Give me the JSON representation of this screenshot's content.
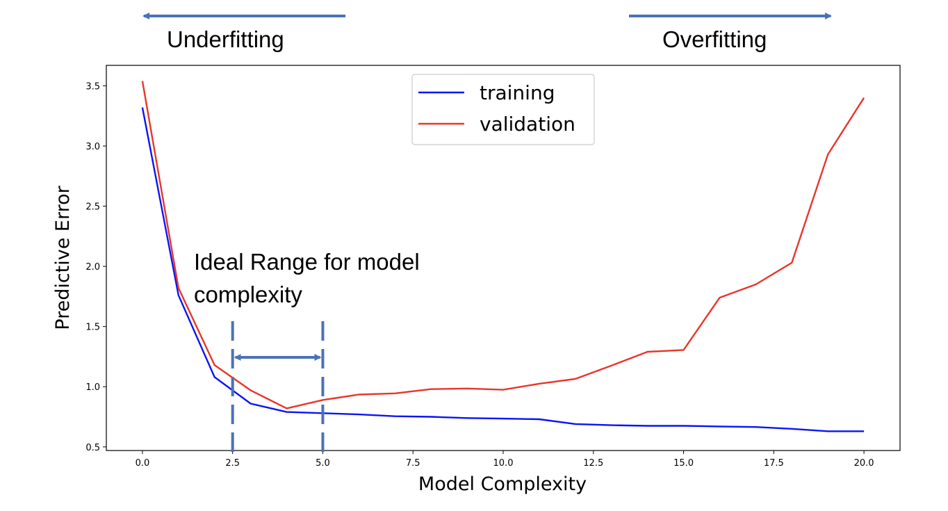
{
  "annotations": {
    "underfitting": "Underfitting",
    "overfitting": "Overfitting",
    "ideal_line1": "Ideal Range for model",
    "ideal_line2": "complexity",
    "ideal_range": [
      2.5,
      5.0
    ],
    "arrow_color": "#4a72b8"
  },
  "chart_data": {
    "type": "line",
    "xlabel": "Model Complexity",
    "ylabel": "Predictive Error",
    "xlim": [
      -1,
      21
    ],
    "ylim": [
      0.47,
      3.67
    ],
    "xticks": [
      0.0,
      2.5,
      5.0,
      7.5,
      10.0,
      12.5,
      15.0,
      17.5,
      20.0
    ],
    "xtick_labels": [
      "0.0",
      "2.5",
      "5.0",
      "7.5",
      "10.0",
      "12.5",
      "15.0",
      "17.5",
      "20.0"
    ],
    "yticks": [
      0.5,
      1.0,
      1.5,
      2.0,
      2.5,
      3.0,
      3.5
    ],
    "ytick_labels": [
      "0.5",
      "1.0",
      "1.5",
      "2.0",
      "2.5",
      "3.0",
      "3.5"
    ],
    "x": [
      0,
      1,
      2,
      3,
      4,
      5,
      6,
      7,
      8,
      9,
      10,
      11,
      12,
      13,
      14,
      15,
      16,
      17,
      18,
      19,
      20
    ],
    "series": [
      {
        "name": "training",
        "color": "#0a14f5",
        "values": [
          3.32,
          1.76,
          1.08,
          0.86,
          0.79,
          0.78,
          0.77,
          0.755,
          0.75,
          0.74,
          0.735,
          0.73,
          0.69,
          0.68,
          0.675,
          0.675,
          0.67,
          0.665,
          0.65,
          0.63,
          0.63
        ]
      },
      {
        "name": "validation",
        "color": "#e8352a",
        "values": [
          3.54,
          1.82,
          1.18,
          0.97,
          0.82,
          0.89,
          0.935,
          0.945,
          0.98,
          0.985,
          0.975,
          1.025,
          1.065,
          1.175,
          1.29,
          1.305,
          1.74,
          1.85,
          2.03,
          2.93,
          3.4
        ]
      }
    ],
    "legend_position": "top-center",
    "grid": false
  }
}
